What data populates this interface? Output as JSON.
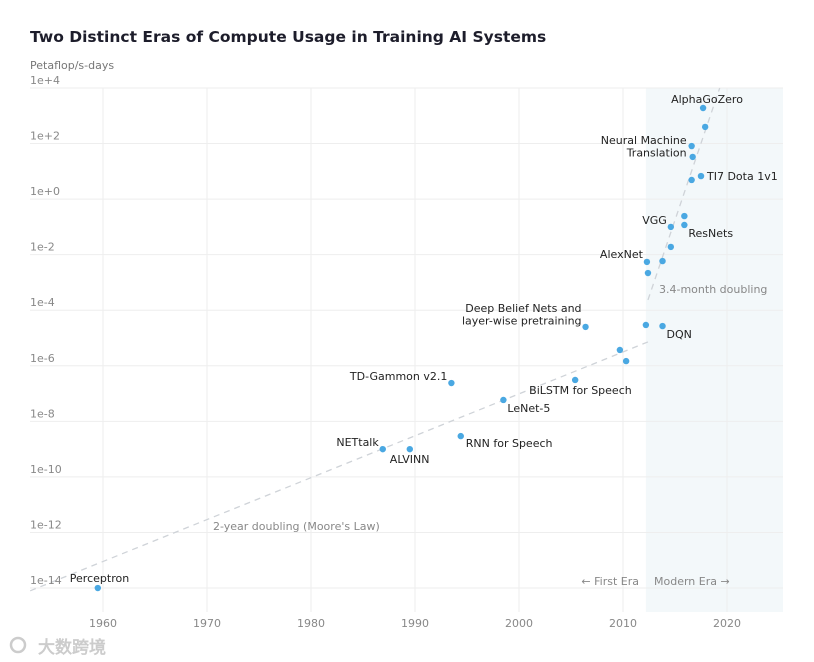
{
  "chart_data": {
    "type": "scatter",
    "title": "Two Distinct Eras of Compute Usage in Training AI Systems",
    "ylabel": "Petaflop/s-days",
    "xlabel": "",
    "yscale": "log10",
    "xlim": [
      1953,
      2025.4
    ],
    "ylim_log10": [
      -14.9,
      4
    ],
    "grid": true,
    "x_ticks": [
      1960,
      1970,
      1980,
      1990,
      2000,
      2010,
      2020
    ],
    "x_tick_labels": [
      "1960",
      "1970",
      "1980",
      "1990",
      "2000",
      "2010",
      "2020"
    ],
    "y_ticks_log10": [
      4,
      2,
      0,
      -2,
      -4,
      -6,
      -8,
      -10,
      -12,
      -14
    ],
    "y_tick_labels": [
      "1e+4",
      "1e+2",
      "1e+0",
      "1e-2",
      "1e-4",
      "1e-6",
      "1e-8",
      "1e-10",
      "1e-12",
      "1e-14"
    ],
    "points": [
      {
        "label": "Perceptron",
        "year": 1959.5,
        "log10_pfsdays": -14.0
      },
      {
        "label": "NETtalk",
        "year": 1986.9,
        "log10_pfsdays": -9.0
      },
      {
        "label": "ALVINN",
        "year": 1989.5,
        "log10_pfsdays": -9.0
      },
      {
        "label": "RNN for Speech",
        "year": 1994.4,
        "log10_pfsdays": -8.53
      },
      {
        "label": "TD-Gammon v2.1",
        "year": 1993.5,
        "log10_pfsdays": -6.62
      },
      {
        "label": "LeNet-5",
        "year": 1998.5,
        "log10_pfsdays": -7.23
      },
      {
        "label": "BiLSTM for Speech",
        "year": 2005.4,
        "log10_pfsdays": -6.51
      },
      {
        "label": "Deep Belief Nets and|layer-wise pretraining",
        "year": 2006.4,
        "log10_pfsdays": -4.6
      },
      {
        "label": "",
        "year": 2009.7,
        "log10_pfsdays": -5.43
      },
      {
        "label": "",
        "year": 2010.3,
        "log10_pfsdays": -5.83
      },
      {
        "label": "",
        "year": 2012.2,
        "log10_pfsdays": -4.53
      },
      {
        "label": "DQN",
        "year": 2013.8,
        "log10_pfsdays": -4.57
      },
      {
        "label": "",
        "year": 2012.4,
        "log10_pfsdays": -2.66
      },
      {
        "label": "AlexNet",
        "year": 2012.3,
        "log10_pfsdays": -2.26
      },
      {
        "label": "",
        "year": 2013.8,
        "log10_pfsdays": -2.23
      },
      {
        "label": "",
        "year": 2014.6,
        "log10_pfsdays": -1.72
      },
      {
        "label": "VGG",
        "year": 2014.6,
        "log10_pfsdays": -1.0
      },
      {
        "label": "",
        "year": 2015.9,
        "log10_pfsdays": -0.61
      },
      {
        "label": "ResNets",
        "year": 2015.9,
        "log10_pfsdays": -0.93
      },
      {
        "label": "",
        "year": 2016.6,
        "log10_pfsdays": 0.69
      },
      {
        "label": "TI7 Dota 1v1",
        "year": 2017.5,
        "log10_pfsdays": 0.83
      },
      {
        "label": "",
        "year": 2016.7,
        "log10_pfsdays": 1.52
      },
      {
        "label": "Neural Machine|Translation",
        "year": 2016.6,
        "log10_pfsdays": 1.91
      },
      {
        "label": "",
        "year": 2017.9,
        "log10_pfsdays": 2.6
      },
      {
        "label": "AlphaGoZero",
        "year": 2017.7,
        "log10_pfsdays": 3.28
      }
    ],
    "trend_lines": [
      {
        "label": "2-year doubling (Moore's Law)",
        "from": [
          1953,
          -14.1
        ],
        "to": [
          2012.4,
          -5.14
        ]
      },
      {
        "label": "3.4-month doubling",
        "from": [
          2012.4,
          -3.63
        ],
        "to": [
          2019.3,
          4.0
        ]
      }
    ],
    "eras": {
      "modern_start_year": 2012.2,
      "first_label": "← First Era",
      "modern_label": "Modern Era →"
    },
    "colors": {
      "point": "#4aa8e2",
      "modern_shade": "#f3f8fa",
      "trend": "#cfd3d8",
      "grid": "#eeeeee"
    }
  },
  "watermark": "大数跨境"
}
